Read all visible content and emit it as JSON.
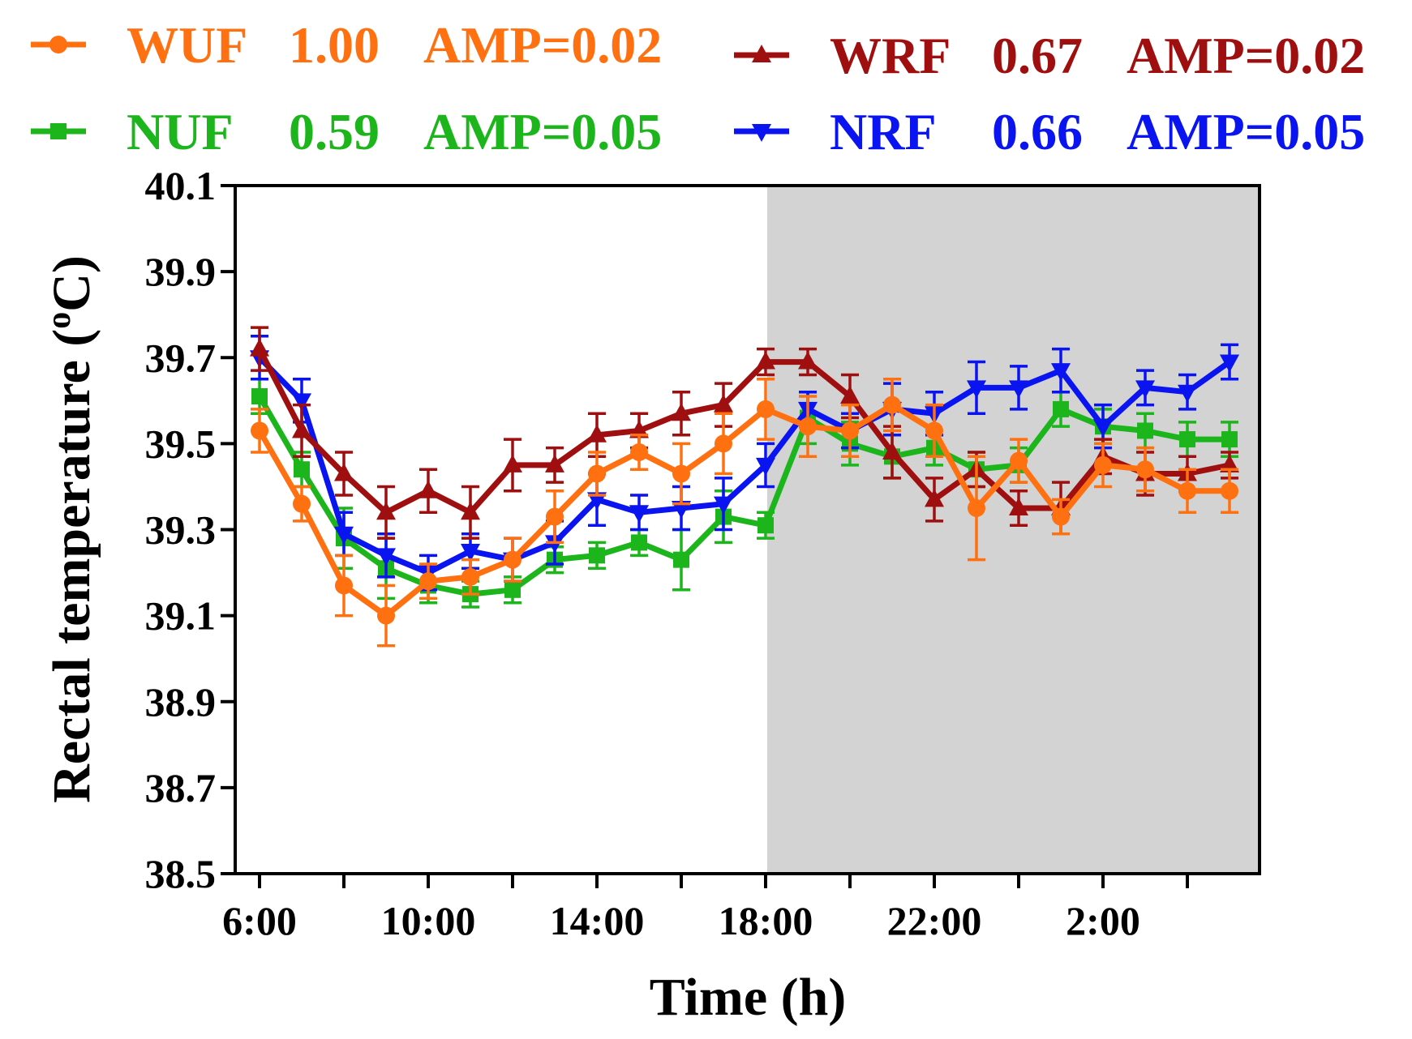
{
  "chart_data": {
    "type": "line",
    "xlabel": "Time (h)",
    "ylabel_main": "Rectal temperature (",
    "ylabel_sup": "o",
    "ylabel_end": "C)",
    "ylim": [
      38.5,
      40.1
    ],
    "yticks": [
      "38.5",
      "38.7",
      "38.9",
      "39.1",
      "39.3",
      "39.5",
      "39.7",
      "39.9",
      "40.1"
    ],
    "hours": [
      "6:00",
      "7:00",
      "8:00",
      "9:00",
      "10:00",
      "11:00",
      "12:00",
      "13:00",
      "14:00",
      "15:00",
      "16:00",
      "17:00",
      "18:00",
      "19:00",
      "20:00",
      "21:00",
      "22:00",
      "23:00",
      "0:00",
      "1:00",
      "2:00",
      "3:00",
      "4:00",
      "5:00"
    ],
    "xtick_labels": [
      "6:00",
      "10:00",
      "14:00",
      "18:00",
      "22:00",
      "2:00"
    ],
    "xtick_label_indices": [
      0,
      4,
      8,
      12,
      16,
      20
    ],
    "shaded_from_index": 12,
    "shade_color": "#d3d3d3",
    "series": [
      {
        "name": "WUF",
        "corr": "1.00",
        "amp": "AMP=0.02",
        "color": "#ff7010",
        "marker": "circle",
        "values": [
          39.53,
          39.36,
          39.17,
          39.1,
          39.18,
          39.19,
          39.23,
          39.33,
          39.43,
          39.48,
          39.43,
          39.5,
          39.58,
          39.54,
          39.53,
          39.59,
          39.53,
          39.35,
          39.46,
          39.33,
          39.45,
          39.44,
          39.39,
          39.39
        ],
        "errors": [
          0.05,
          0.04,
          0.07,
          0.07,
          0.04,
          0.04,
          0.05,
          0.06,
          0.05,
          0.04,
          0.07,
          0.07,
          0.07,
          0.07,
          0.06,
          0.06,
          0.06,
          0.12,
          0.05,
          0.04,
          0.05,
          0.05,
          0.05,
          0.05
        ]
      },
      {
        "name": "WRF",
        "corr": "0.67",
        "amp": "AMP=0.02",
        "color": "#a00f0f",
        "marker": "triangle-up",
        "values": [
          39.72,
          39.53,
          39.43,
          39.34,
          39.39,
          39.34,
          39.45,
          39.45,
          39.52,
          39.53,
          39.57,
          39.59,
          39.69,
          39.69,
          39.61,
          39.48,
          39.37,
          39.44,
          39.35,
          39.35,
          39.47,
          39.43,
          39.43,
          39.45
        ],
        "errors": [
          0.05,
          0.06,
          0.05,
          0.06,
          0.05,
          0.06,
          0.06,
          0.04,
          0.05,
          0.04,
          0.05,
          0.05,
          0.03,
          0.03,
          0.05,
          0.06,
          0.05,
          0.04,
          0.04,
          0.06,
          0.04,
          0.05,
          0.04,
          0.03
        ]
      },
      {
        "name": "NUF",
        "corr": "0.59",
        "amp": "AMP=0.05",
        "color": "#1cb51c",
        "marker": "square",
        "values": [
          39.61,
          39.44,
          39.28,
          39.21,
          39.17,
          39.15,
          39.16,
          39.23,
          39.24,
          39.27,
          39.23,
          39.33,
          39.31,
          39.56,
          39.5,
          39.47,
          39.49,
          39.44,
          39.45,
          39.58,
          39.54,
          39.53,
          39.51,
          39.51
        ],
        "errors": [
          0.04,
          0.04,
          0.07,
          0.07,
          0.04,
          0.03,
          0.03,
          0.03,
          0.03,
          0.03,
          0.07,
          0.06,
          0.03,
          0.06,
          0.05,
          0.05,
          0.04,
          0.04,
          0.04,
          0.04,
          0.04,
          0.04,
          0.04,
          0.04
        ]
      },
      {
        "name": "NRF",
        "corr": "0.66",
        "amp": "AMP=0.05",
        "color": "#0a14f0",
        "marker": "triangle-down",
        "values": [
          39.7,
          39.6,
          39.29,
          39.24,
          39.2,
          39.25,
          39.23,
          39.27,
          39.37,
          39.34,
          39.35,
          39.36,
          39.45,
          39.58,
          39.53,
          39.58,
          39.57,
          39.63,
          39.63,
          39.67,
          39.54,
          39.63,
          39.62,
          39.69
        ],
        "errors": [
          0.05,
          0.05,
          0.05,
          0.05,
          0.04,
          0.04,
          0.05,
          0.05,
          0.06,
          0.04,
          0.05,
          0.06,
          0.05,
          0.04,
          0.04,
          0.06,
          0.05,
          0.06,
          0.05,
          0.05,
          0.05,
          0.04,
          0.04,
          0.04
        ]
      }
    ]
  }
}
